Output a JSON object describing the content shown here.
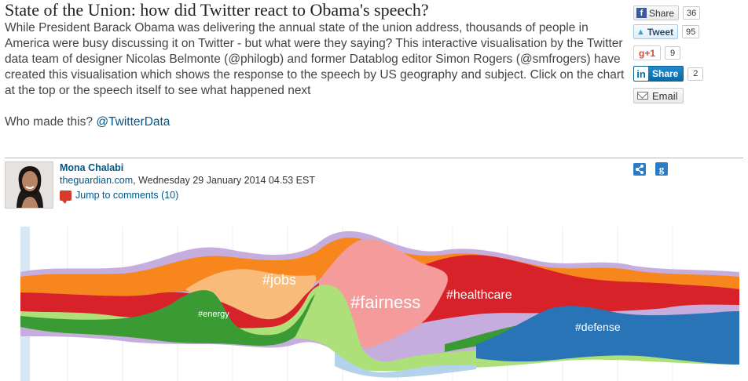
{
  "article": {
    "headline": "State of the Union: how did Twitter react to Obama's speech?",
    "standfirst": "While President Barack Obama was delivering the annual state of the union address, thousands of people in America were busy discussing it on Twitter - but what were they saying? This interactive visualisation by the Twitter data team of designer Nicolas Belmonte (@philogb) and former Datablog editor Simon Rogers (@smfrogers) have created this visualisation which shows the response to the speech by US geography and subject. Click on the chart at the top or the speech itself to see what happened next",
    "who_made_label": "Who made this?",
    "who_made_handle": "@TwitterData"
  },
  "share": {
    "facebook": {
      "label": "Share",
      "count": "36",
      "icon": "facebook-icon"
    },
    "twitter": {
      "label": "Tweet",
      "count": "95",
      "icon": "twitter-bird-icon"
    },
    "googleplus": {
      "label": "g+1",
      "count": "9"
    },
    "linkedin": {
      "label": "Share",
      "count": "2",
      "icon": "linkedin-icon"
    },
    "email": {
      "label": "Email",
      "icon": "envelope-icon"
    }
  },
  "byline": {
    "author": "Mona Chalabi",
    "site": "theguardian.com",
    "date": ", Wednesday 29 January 2014 04.53 EST",
    "comments": "Jump to comments (10)"
  },
  "streamgraph": {
    "labels": {
      "jobs": "#jobs",
      "energy": "#energy",
      "fairness": "#fairness",
      "healthcare": "#healthcare",
      "defense": "#defense"
    },
    "colors": {
      "lavender": "#c5aedd",
      "orange": "#f7861d",
      "light_orange": "#f9bb79",
      "red": "#d8222a",
      "pink": "#f59b9b",
      "light_green": "#aee07a",
      "green": "#3a9a33",
      "blue": "#2874b7",
      "light_blue": "#b2d3ea"
    }
  }
}
